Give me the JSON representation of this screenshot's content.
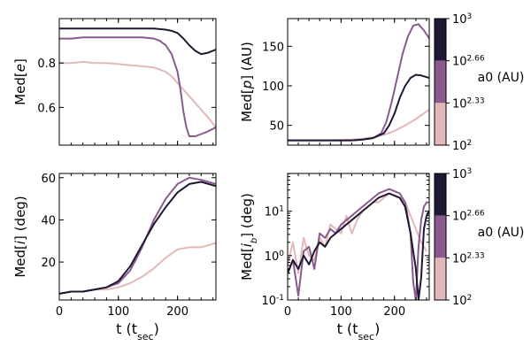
{
  "chart_data": [
    {
      "type": "line",
      "panel": "top-left",
      "ylabel": "Med[e]",
      "xlabel": "",
      "xlim": [
        0,
        265
      ],
      "ylim": [
        0.43,
        1.0
      ],
      "xticks": [
        0,
        100,
        200
      ],
      "yticks": [
        0.6,
        0.8
      ],
      "ytick_labels": [
        "0.6",
        "0.8"
      ],
      "yscale": "linear",
      "series": [
        {
          "name": "10^2",
          "color": "#e3b8b8",
          "x": [
            0,
            20,
            40,
            60,
            80,
            100,
            120,
            140,
            160,
            180,
            190,
            200,
            210,
            220,
            230,
            240,
            250,
            265
          ],
          "y": [
            0.8,
            0.8,
            0.805,
            0.8,
            0.8,
            0.795,
            0.79,
            0.785,
            0.78,
            0.76,
            0.74,
            0.71,
            0.68,
            0.65,
            0.62,
            0.59,
            0.56,
            0.51
          ]
        },
        {
          "name": "10^2.33",
          "color": "#8a5a8e",
          "x": [
            0,
            20,
            40,
            60,
            80,
            100,
            120,
            140,
            160,
            170,
            180,
            190,
            200,
            205,
            210,
            215,
            220,
            230,
            240,
            250,
            265
          ],
          "y": [
            0.91,
            0.91,
            0.915,
            0.915,
            0.915,
            0.915,
            0.915,
            0.915,
            0.91,
            0.9,
            0.88,
            0.84,
            0.76,
            0.68,
            0.58,
            0.51,
            0.47,
            0.47,
            0.48,
            0.49,
            0.51
          ]
        },
        {
          "name": "10^3",
          "color": "#1f1833",
          "x": [
            0,
            20,
            40,
            60,
            80,
            100,
            120,
            140,
            160,
            180,
            190,
            200,
            210,
            220,
            230,
            240,
            250,
            265
          ],
          "y": [
            0.955,
            0.955,
            0.955,
            0.955,
            0.955,
            0.955,
            0.955,
            0.955,
            0.955,
            0.95,
            0.945,
            0.935,
            0.91,
            0.88,
            0.855,
            0.84,
            0.845,
            0.86
          ]
        }
      ]
    },
    {
      "type": "line",
      "panel": "top-right",
      "ylabel": "Med[p] (AU)",
      "xlabel": "",
      "xlim": [
        0,
        265
      ],
      "ylim": [
        25,
        185
      ],
      "xticks": [
        0,
        100,
        200
      ],
      "yticks": [
        50,
        100,
        150
      ],
      "ytick_labels": [
        "50",
        "100",
        "150"
      ],
      "yscale": "linear",
      "series": [
        {
          "name": "10^2",
          "color": "#e3b8b8",
          "x": [
            0,
            40,
            80,
            120,
            140,
            160,
            180,
            200,
            220,
            240,
            265
          ],
          "y": [
            31,
            31,
            31,
            32,
            33,
            35,
            38,
            43,
            50,
            58,
            70
          ]
        },
        {
          "name": "10^2.33",
          "color": "#8a5a8e",
          "x": [
            0,
            40,
            80,
            120,
            140,
            160,
            175,
            185,
            195,
            205,
            215,
            225,
            235,
            245,
            255,
            265
          ],
          "y": [
            31,
            31,
            31,
            31,
            32,
            34,
            40,
            55,
            80,
            110,
            140,
            162,
            176,
            178,
            170,
            160
          ]
        },
        {
          "name": "10^3",
          "color": "#1f1833",
          "x": [
            0,
            40,
            80,
            120,
            140,
            160,
            180,
            190,
            200,
            210,
            220,
            230,
            240,
            250,
            265
          ],
          "y": [
            31,
            31,
            31,
            31,
            32,
            34,
            40,
            50,
            65,
            85,
            100,
            110,
            114,
            113,
            110
          ]
        }
      ]
    },
    {
      "type": "line",
      "panel": "bottom-left",
      "ylabel": "Med[i] (deg)",
      "xlabel": "t (t_sec)",
      "xlim": [
        0,
        265
      ],
      "ylim": [
        2,
        62
      ],
      "xticks": [
        0,
        100,
        200
      ],
      "xtick_labels": [
        "0",
        "100",
        "200"
      ],
      "yticks": [
        20,
        40,
        60
      ],
      "ytick_labels": [
        "20",
        "40",
        "60"
      ],
      "yscale": "linear",
      "series": [
        {
          "name": "10^2",
          "color": "#e3b8b8",
          "x": [
            0,
            20,
            40,
            60,
            80,
            100,
            120,
            140,
            160,
            180,
            200,
            220,
            240,
            265
          ],
          "y": [
            5,
            6,
            6,
            7,
            7,
            8,
            10,
            13,
            17,
            22,
            26,
            27,
            27,
            29
          ]
        },
        {
          "name": "10^2.33",
          "color": "#8a5a8e",
          "x": [
            0,
            20,
            40,
            60,
            80,
            100,
            120,
            140,
            160,
            180,
            200,
            220,
            240,
            265
          ],
          "y": [
            5,
            6,
            6,
            7,
            8,
            10,
            16,
            27,
            40,
            50,
            57,
            60,
            59,
            57
          ]
        },
        {
          "name": "10^3",
          "color": "#1f1833",
          "x": [
            0,
            20,
            40,
            60,
            80,
            100,
            120,
            140,
            160,
            180,
            200,
            220,
            240,
            265
          ],
          "y": [
            5,
            6,
            6,
            7,
            8,
            11,
            18,
            28,
            38,
            46,
            53,
            57,
            58,
            56
          ]
        }
      ]
    },
    {
      "type": "line",
      "panel": "bottom-right",
      "ylabel": "Med[i_b] (deg)",
      "xlabel": "t (t_sec)",
      "xlim": [
        0,
        265
      ],
      "ylim_log10": [
        -1,
        1.85
      ],
      "xticks": [
        0,
        100,
        200
      ],
      "xtick_labels": [
        "0",
        "100",
        "200"
      ],
      "yticks_log10": [
        -1,
        0,
        1
      ],
      "ytick_labels": [
        "10^-1",
        "10^0",
        "10^1"
      ],
      "yscale": "log",
      "series": [
        {
          "name": "10^2",
          "color": "#e3b8b8",
          "x": [
            0,
            10,
            20,
            30,
            40,
            50,
            60,
            70,
            80,
            90,
            100,
            110,
            120,
            130,
            140,
            150,
            160,
            170,
            180,
            190,
            200,
            210,
            220,
            230,
            240,
            250,
            260
          ],
          "log10_y": [
            -0.2,
            0.3,
            -0.4,
            0.4,
            0.0,
            -0.1,
            0.4,
            0.2,
            0.7,
            0.6,
            0.5,
            0.9,
            0.5,
            0.8,
            1.0,
            1.1,
            1.2,
            1.2,
            1.3,
            1.4,
            1.35,
            1.3,
            1.2,
            0.9,
            0.6,
            0.3,
            0.1
          ]
        },
        {
          "name": "10^2.33",
          "color": "#8a5a8e",
          "x": [
            0,
            10,
            20,
            30,
            40,
            50,
            60,
            70,
            80,
            90,
            100,
            110,
            120,
            130,
            140,
            150,
            160,
            170,
            180,
            190,
            200,
            210,
            220,
            230,
            235,
            240,
            245,
            250,
            255,
            260,
            265
          ],
          "log10_y": [
            -0.4,
            -0.1,
            -0.9,
            0.1,
            0.2,
            -0.3,
            0.5,
            0.4,
            0.6,
            0.5,
            0.7,
            0.8,
            0.9,
            1.0,
            1.1,
            1.2,
            1.3,
            1.4,
            1.45,
            1.5,
            1.45,
            1.4,
            1.2,
            0.5,
            -0.6,
            -1.0,
            0.2,
            0.8,
            1.1,
            1.2,
            1.2
          ]
        },
        {
          "name": "10^3",
          "color": "#1f1833",
          "x": [
            0,
            10,
            20,
            30,
            40,
            50,
            60,
            70,
            80,
            90,
            100,
            110,
            120,
            130,
            140,
            150,
            160,
            170,
            180,
            190,
            200,
            210,
            220,
            230,
            240,
            245,
            250,
            255,
            260,
            265
          ],
          "log10_y": [
            -0.4,
            -0.1,
            -0.3,
            0.0,
            -0.2,
            0.1,
            0.3,
            0.2,
            0.4,
            0.5,
            0.6,
            0.7,
            0.8,
            0.9,
            1.0,
            1.1,
            1.2,
            1.3,
            1.35,
            1.4,
            1.35,
            1.3,
            1.1,
            0.5,
            -0.3,
            -1.0,
            -0.5,
            0.6,
            0.9,
            1.0
          ]
        }
      ]
    }
  ],
  "colorbars": [
    {
      "label": "a0 (AU)",
      "tick_labels": [
        "10^3",
        "10^2.66",
        "10^2.33",
        "10^2"
      ],
      "bands": [
        "#1f1833",
        "#8a5a8e",
        "#e3b8b8"
      ]
    },
    {
      "label": "a0 (AU)",
      "tick_labels": [
        "10^3",
        "10^2.66",
        "10^2.33",
        "10^2"
      ],
      "bands": [
        "#1f1833",
        "#8a5a8e",
        "#e3b8b8"
      ]
    }
  ]
}
